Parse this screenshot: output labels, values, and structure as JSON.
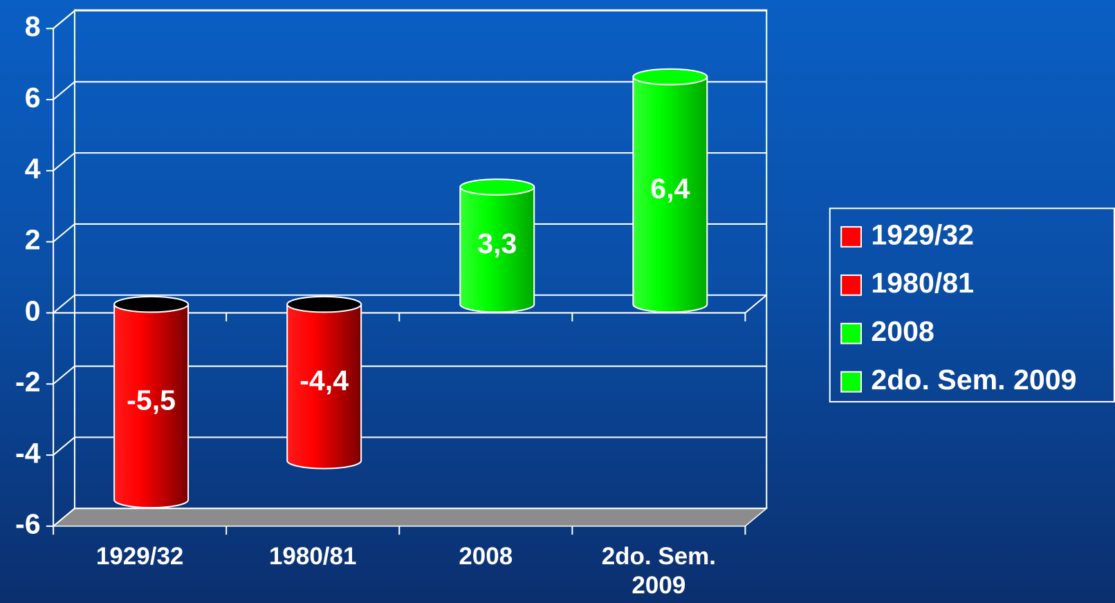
{
  "chart_data": {
    "type": "bar3d",
    "categories": [
      "1929/32",
      "1980/81",
      "2008",
      "2do. Sem. 2009"
    ],
    "values": [
      -5.5,
      -4.4,
      3.3,
      6.4
    ],
    "value_labels": [
      "-5,5",
      "-4,4",
      "3,3",
      "6,4"
    ],
    "colors": [
      "#ff0000",
      "#ff0000",
      "#00ff00",
      "#00ff00"
    ],
    "ylim": [
      -6,
      8
    ],
    "yticks": [
      -6,
      -4,
      -2,
      0,
      2,
      4,
      6,
      8
    ],
    "grid": true,
    "legend": "right"
  }
}
